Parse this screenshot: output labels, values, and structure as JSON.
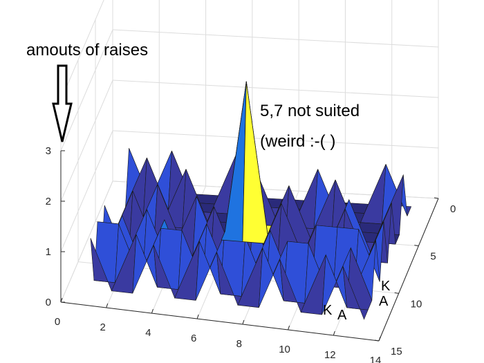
{
  "chart_data": {
    "type": "surface3d",
    "x_ticks": [
      "0",
      "2",
      "4",
      "6",
      "8",
      "10",
      "12",
      "14"
    ],
    "y_ticks": [
      "0",
      "5",
      "10",
      "15"
    ],
    "z_ticks": [
      "0",
      "1",
      "2",
      "3"
    ],
    "xlim": [
      0,
      14
    ],
    "ylim": [
      0,
      15
    ],
    "zlim": [
      0,
      3
    ],
    "grid": true,
    "colormap": [
      "#2a2a7a",
      "#3a3aa0",
      "#2f4fd8",
      "#1f73e0",
      "#1f96d8",
      "#ffff33"
    ],
    "surface_z": [
      [
        0,
        0,
        0,
        0,
        0,
        0,
        0,
        0,
        0,
        0,
        0,
        0,
        0,
        0
      ],
      [
        1,
        0,
        1,
        0,
        0,
        1,
        0,
        0,
        0,
        0,
        0,
        0,
        1,
        0
      ],
      [
        0,
        1,
        0,
        0,
        0,
        0,
        1,
        0,
        0,
        1,
        0,
        0,
        0,
        1
      ],
      [
        0,
        0,
        0,
        1,
        0,
        0,
        0,
        0,
        0,
        0,
        1,
        0,
        0,
        0
      ],
      [
        0,
        0,
        0,
        0,
        0,
        0,
        3,
        0,
        1,
        0,
        0,
        0,
        0,
        0
      ],
      [
        0,
        0,
        1,
        0,
        0,
        0,
        0,
        0,
        0,
        0,
        0,
        1,
        0,
        1
      ],
      [
        0,
        1,
        0,
        0,
        1,
        0,
        0,
        0,
        1,
        0,
        0,
        1,
        0,
        0
      ],
      [
        0,
        0,
        0,
        0,
        0,
        1,
        0,
        0,
        0,
        0,
        0,
        0,
        0,
        1
      ],
      [
        1,
        0,
        1,
        0,
        0,
        0,
        0,
        1,
        0,
        0,
        1,
        1,
        1,
        0
      ],
      [
        0,
        1,
        0,
        1,
        0,
        1,
        0,
        0,
        1,
        0,
        0,
        0,
        0,
        1
      ],
      [
        1,
        1,
        0,
        1,
        1,
        0,
        1,
        1,
        0,
        1,
        1,
        0,
        1,
        0
      ],
      [
        0,
        0,
        1,
        0,
        0,
        1,
        0,
        0,
        1,
        0,
        0,
        1,
        0,
        0
      ],
      [
        1,
        0,
        0,
        1,
        0,
        0,
        1,
        0,
        0,
        1,
        0,
        0,
        1,
        0
      ]
    ]
  },
  "annotations": {
    "ylabel_note": "amouts of raises",
    "peak_line1": "5,7 not suited",
    "peak_line2": "(weird :-( )",
    "k_right": "K",
    "a_right": "A",
    "k_front": "K",
    "a_front": "A"
  }
}
